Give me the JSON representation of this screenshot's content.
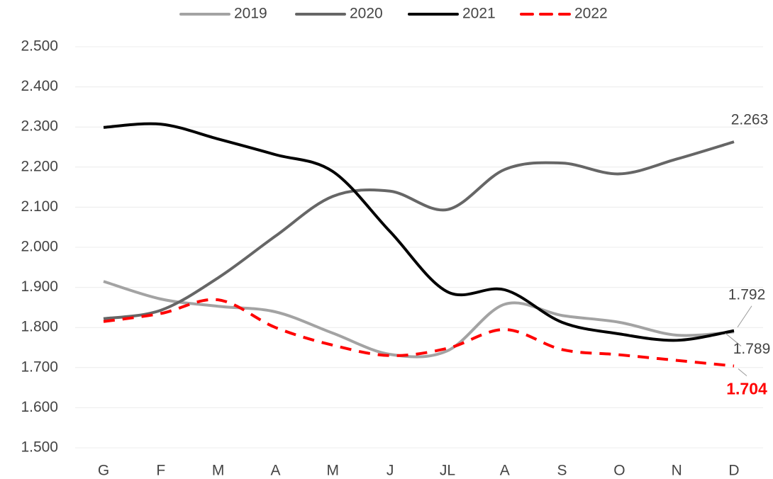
{
  "chart_data": {
    "type": "line",
    "categories": [
      "G",
      "F",
      "M",
      "A",
      "M",
      "J",
      "JL",
      "A",
      "S",
      "O",
      "N",
      "D"
    ],
    "series": [
      {
        "name": "2019",
        "color": "#a3a3a3",
        "dashed": false,
        "values": [
          1915,
          1871,
          1853,
          1839,
          1786,
          1733,
          1742,
          1858,
          1830,
          1813,
          1781,
          1789
        ],
        "value_labels": [
          null,
          null,
          null,
          null,
          null,
          null,
          null,
          null,
          null,
          null,
          null,
          "1.789"
        ]
      },
      {
        "name": "2020",
        "color": "#666666",
        "dashed": false,
        "values": [
          1822,
          1843,
          1924,
          2028,
          2127,
          2140,
          2094,
          2194,
          2210,
          2183,
          2220,
          2263
        ],
        "value_labels": [
          null,
          null,
          null,
          null,
          null,
          null,
          null,
          null,
          null,
          null,
          null,
          "2.263"
        ]
      },
      {
        "name": "2021",
        "color": "#000000",
        "dashed": false,
        "values": [
          2299,
          2307,
          2270,
          2231,
          2189,
          2039,
          1889,
          1894,
          1813,
          1784,
          1768,
          1792
        ],
        "value_labels": [
          null,
          null,
          null,
          null,
          null,
          null,
          null,
          null,
          null,
          null,
          null,
          "1.792"
        ]
      },
      {
        "name": "2022",
        "color": "#ff0000",
        "dashed": true,
        "values": [
          1815,
          1835,
          1869,
          1800,
          1756,
          1730,
          1748,
          1795,
          1745,
          1732,
          1718,
          1704
        ],
        "value_labels": [
          null,
          null,
          null,
          null,
          null,
          null,
          null,
          null,
          null,
          null,
          null,
          "1.704"
        ]
      }
    ],
    "ylim": [
      1500,
      2500
    ],
    "yticks": [
      {
        "value": 1500,
        "label": "1.500"
      },
      {
        "value": 1600,
        "label": "1.600"
      },
      {
        "value": 1700,
        "label": "1.700"
      },
      {
        "value": 1800,
        "label": "1.800"
      },
      {
        "value": 1900,
        "label": "1.900"
      },
      {
        "value": 2000,
        "label": "2.000"
      },
      {
        "value": 2100,
        "label": "2.100"
      },
      {
        "value": 2200,
        "label": "2.200"
      },
      {
        "value": 2300,
        "label": "2.300"
      },
      {
        "value": 2400,
        "label": "2.400"
      },
      {
        "value": 2500,
        "label": "2.500"
      }
    ],
    "grid": true,
    "legend": "top"
  }
}
